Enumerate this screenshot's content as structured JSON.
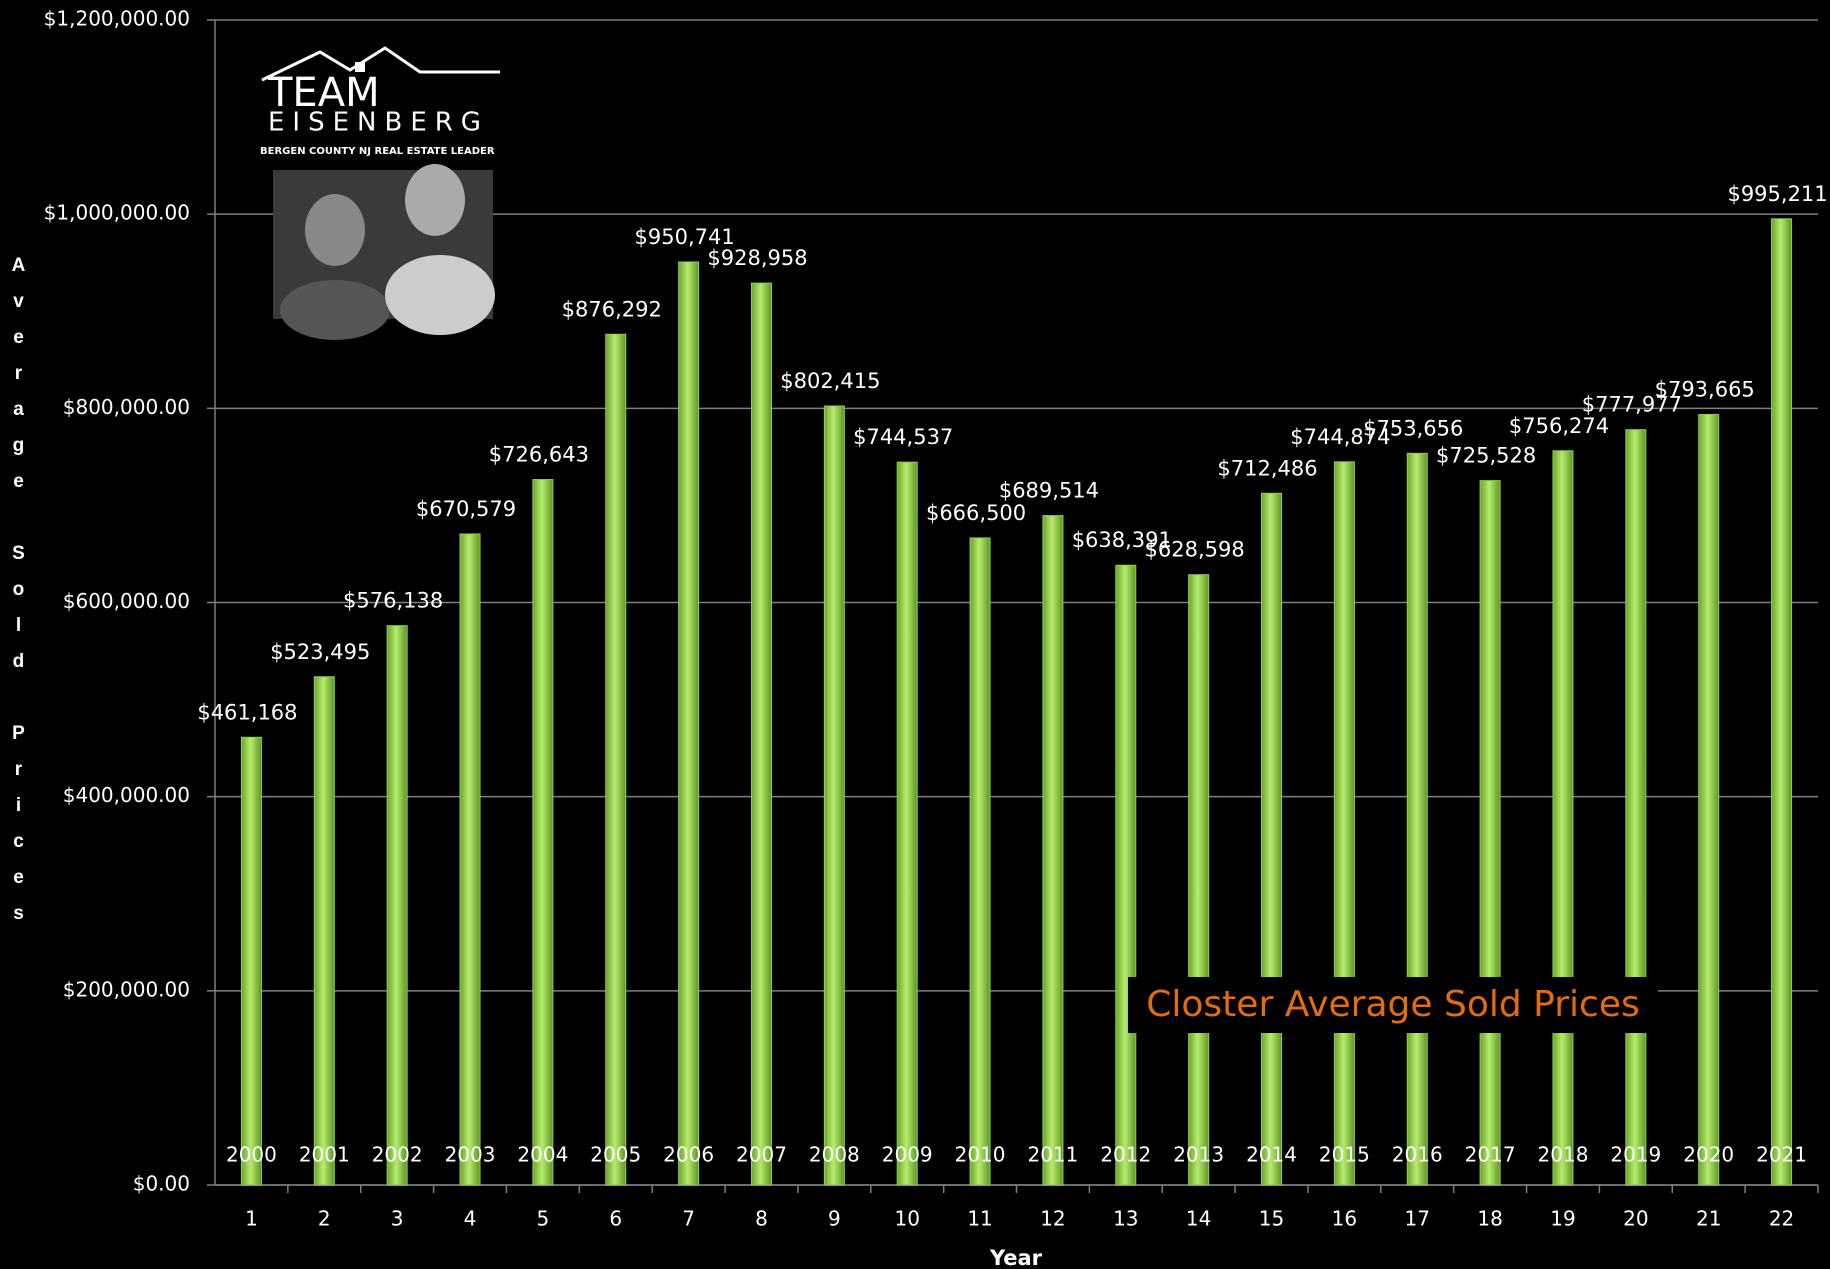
{
  "chart_data": {
    "type": "bar",
    "annotation": "Closter Average Sold Prices",
    "y_label": "Average Sold Prices",
    "x_label": "Year",
    "logo": {
      "name_top": "TEAM",
      "name_bottom": "EISENBERG",
      "tagline": "BERGEN COUNTY NJ REAL ESTATE LEADER"
    },
    "categories": [
      "1",
      "2",
      "3",
      "4",
      "5",
      "6",
      "7",
      "8",
      "9",
      "10",
      "11",
      "12",
      "13",
      "14",
      "15",
      "16",
      "17",
      "18",
      "19",
      "20",
      "21",
      "22"
    ],
    "year_labels": [
      "2000",
      "2001",
      "2002",
      "2003",
      "2004",
      "2005",
      "2006",
      "2007",
      "2008",
      "2009",
      "2010",
      "2011",
      "2012",
      "2013",
      "2014",
      "2015",
      "2016",
      "2017",
      "2018",
      "2019",
      "2020",
      "2021"
    ],
    "values": [
      461168,
      523495,
      576138,
      670579,
      726643,
      876292,
      950741,
      928958,
      802415,
      744537,
      666500,
      689514,
      638391,
      628598,
      712486,
      744874,
      753656,
      725528,
      756274,
      777977,
      793665,
      995211
    ],
    "value_labels": [
      "$461,168",
      "$523,495",
      "$576,138",
      "$670,579",
      "$726,643",
      "$876,292",
      "$950,741",
      "$928,958",
      "$802,415",
      "$744,537",
      "$666,500",
      "$689,514",
      "$638,391",
      "$628,598",
      "$712,486",
      "$744,874",
      "$753,656",
      "$725,528",
      "$756,274",
      "$777,977",
      "$793,665",
      "$995,211"
    ],
    "color": "#92d050",
    "ylim": [
      0,
      1200000
    ],
    "yticks": [
      {
        "value": 0,
        "label": "$0.00"
      },
      {
        "value": 200000,
        "label": "$200,000.00"
      },
      {
        "value": 400000,
        "label": "$400,000.00"
      },
      {
        "value": 600000,
        "label": "$600,000.00"
      },
      {
        "value": 800000,
        "label": "$800,000.00"
      },
      {
        "value": 1000000,
        "label": "$1,000,000.00"
      },
      {
        "value": 1200000,
        "label": "$1,200,000.00"
      }
    ],
    "grid": true
  }
}
